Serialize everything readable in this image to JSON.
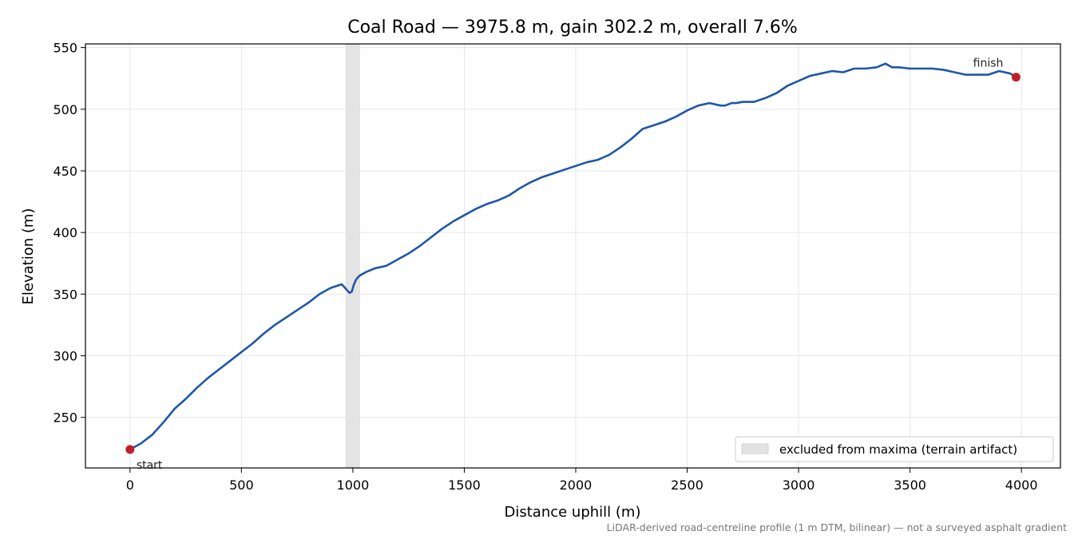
{
  "chart_data": {
    "type": "line",
    "title": "Coal Road — 3975.8 m, gain 302.2 m, overall 7.6%",
    "xlabel": "Distance uphill (m)",
    "ylabel": "Elevation (m)",
    "xlim": [
      -200,
      4175
    ],
    "ylim": [
      209,
      553
    ],
    "xticks": [
      0,
      500,
      1000,
      1500,
      2000,
      2500,
      3000,
      3500,
      4000
    ],
    "yticks": [
      250,
      300,
      350,
      400,
      450,
      500,
      550
    ],
    "grid": true,
    "legend_position": "bottom-right",
    "series": [
      {
        "color": "#1f56a8",
        "x": [
          0,
          50,
          100,
          150,
          200,
          250,
          300,
          350,
          400,
          450,
          500,
          550,
          600,
          650,
          700,
          750,
          800,
          850,
          900,
          950,
          985,
          995,
          1005,
          1015,
          1030,
          1060,
          1100,
          1150,
          1200,
          1250,
          1300,
          1350,
          1400,
          1450,
          1500,
          1550,
          1600,
          1650,
          1700,
          1750,
          1800,
          1850,
          1900,
          1950,
          2000,
          2050,
          2100,
          2150,
          2200,
          2250,
          2300,
          2350,
          2400,
          2450,
          2500,
          2550,
          2600,
          2650,
          2670,
          2700,
          2720,
          2750,
          2800,
          2850,
          2900,
          2950,
          3000,
          3050,
          3100,
          3150,
          3200,
          3250,
          3300,
          3350,
          3390,
          3420,
          3450,
          3500,
          3550,
          3600,
          3650,
          3700,
          3750,
          3800,
          3850,
          3900,
          3950,
          3975.8
        ],
        "values": [
          224,
          229,
          236,
          246,
          257,
          265,
          274,
          282,
          289,
          296,
          303,
          310,
          318,
          325,
          331,
          337,
          343,
          350,
          355,
          358,
          351,
          352,
          358,
          362,
          365,
          368,
          371,
          373,
          378,
          383,
          389,
          396,
          403,
          409,
          414,
          419,
          423,
          426,
          430,
          436,
          441,
          445,
          448,
          451,
          454,
          457,
          459,
          463,
          469,
          476,
          484,
          487,
          490,
          494,
          499,
          503,
          505,
          503,
          503,
          505,
          505,
          506,
          506,
          509,
          513,
          519,
          523,
          527,
          529,
          531,
          530,
          533,
          533,
          534,
          537,
          534,
          534,
          533,
          533,
          533,
          532,
          530,
          528,
          528,
          528,
          531,
          529,
          526
        ]
      }
    ],
    "excluded_band": {
      "x": [
        970,
        1030
      ],
      "color": "#e4e4e4"
    },
    "markers": [
      {
        "label": "start",
        "x": 0,
        "y": 224,
        "color": "#c0202a"
      },
      {
        "label": "finish",
        "x": 3975.8,
        "y": 526,
        "color": "#c0202a"
      }
    ],
    "legend": [
      {
        "label": "excluded from maxima (terrain artifact)"
      }
    ],
    "footnote": "LiDAR-derived road-centreline profile (1 m DTM, bilinear) — not a surveyed asphalt gradient"
  }
}
